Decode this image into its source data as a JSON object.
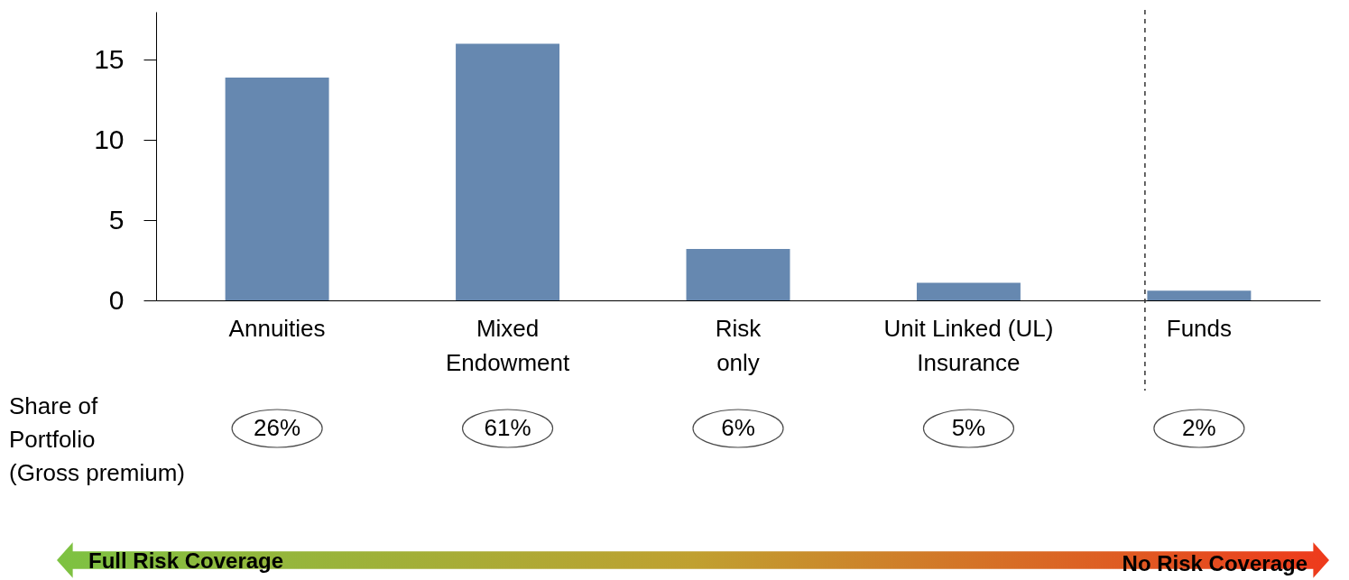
{
  "chart_data": {
    "type": "bar",
    "categories": [
      "Annuities",
      "Mixed\nEndowment",
      "Risk\nonly",
      "Unit Linked (UL)\nInsurance",
      "Funds"
    ],
    "values": [
      13.9,
      16.0,
      3.2,
      1.1,
      0.6
    ],
    "color": "#6688b0",
    "ylim": [
      0,
      18
    ],
    "yticks": [
      0,
      5,
      10,
      15
    ],
    "grid": false,
    "ref_lines": [
      {
        "axis": "x",
        "value": "Funds",
        "line_style": "dashed",
        "color": "#333333"
      }
    ],
    "annotations": [
      "Share of\nPortfolio\n(Gross premium)",
      "26%",
      "61%",
      "6%",
      "5%",
      "2%",
      "Full Risk Coverage",
      "No Risk Coverage"
    ]
  }
}
